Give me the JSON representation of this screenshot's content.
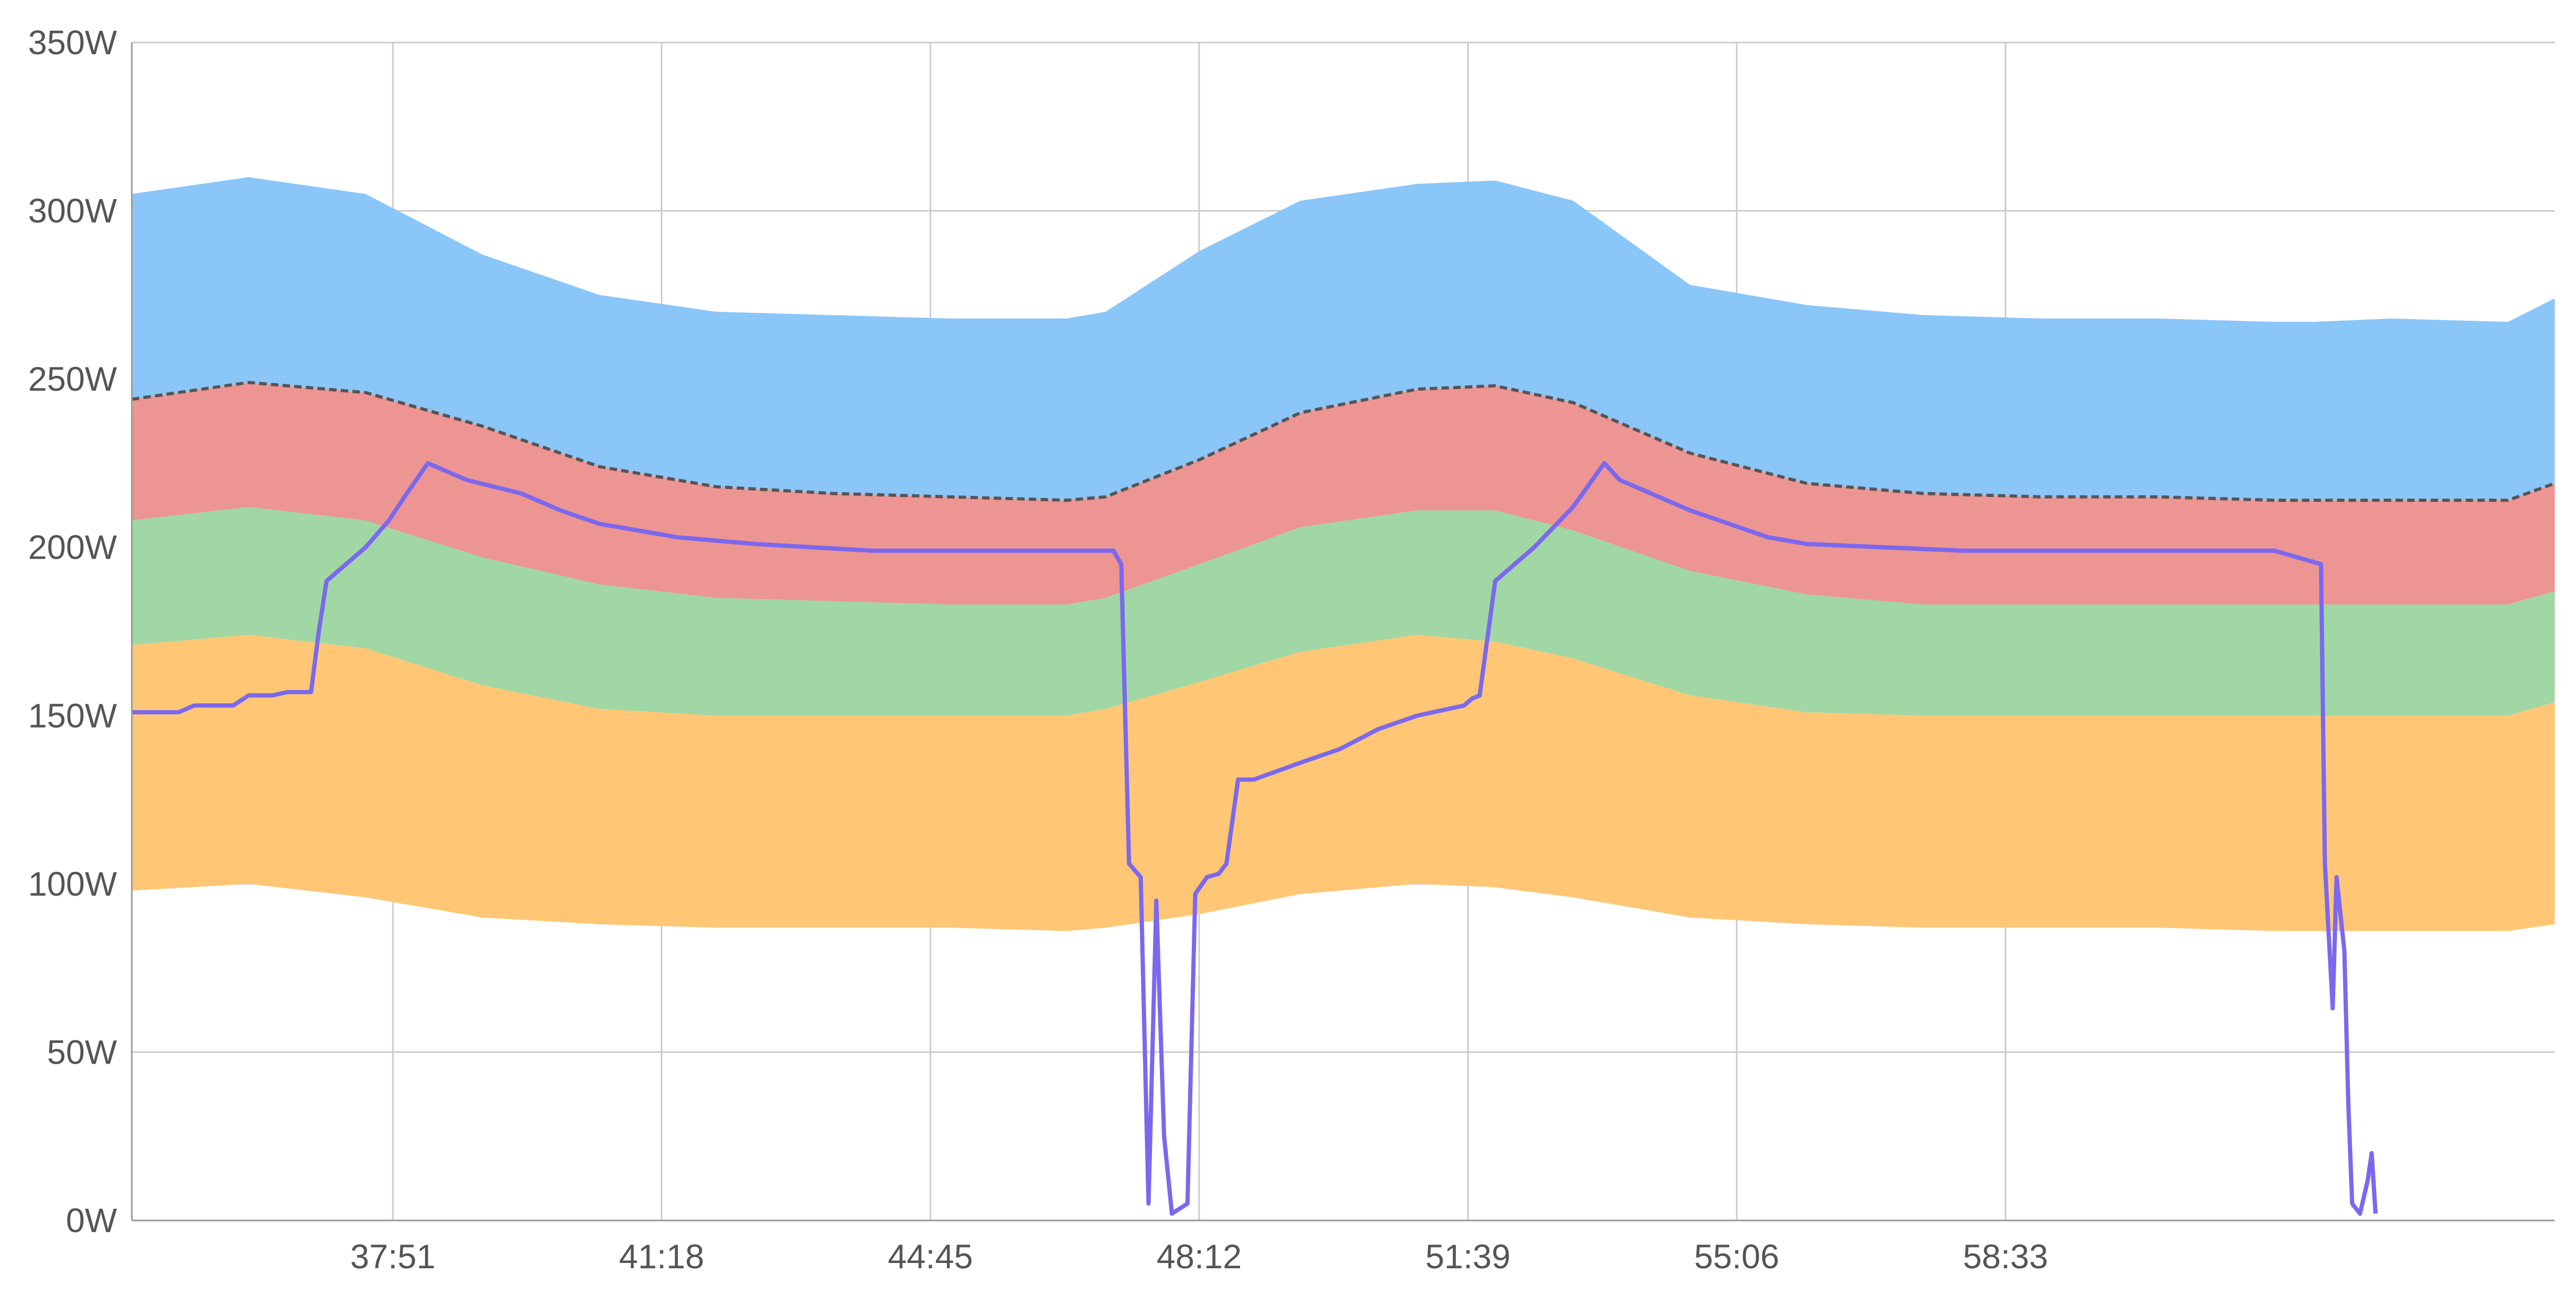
{
  "chart_data": {
    "type": "area",
    "title": "",
    "xlabel": "",
    "ylabel": "",
    "grid": true,
    "legend": "none",
    "x_unit": "minutes",
    "xlim": [
      34.5,
      65.6
    ],
    "ylim": [
      0,
      350
    ],
    "y_ticks": [
      0,
      50,
      100,
      150,
      200,
      250,
      300,
      350
    ],
    "y_tick_labels": [
      "0W",
      "50W",
      "100W",
      "150W",
      "200W",
      "250W",
      "300W",
      "350W"
    ],
    "x_ticks": [
      37.85,
      41.3,
      44.75,
      48.2,
      51.65,
      55.1,
      58.55
    ],
    "x_tick_labels": [
      "37:51",
      "41:18",
      "44:45",
      "48:12",
      "51:39",
      "55:06",
      "58:33"
    ],
    "x": [
      34.5,
      36.0,
      37.5,
      39.0,
      40.5,
      42.0,
      43.5,
      45.0,
      46.5,
      47.0,
      48.2,
      49.5,
      51.0,
      52.0,
      53.0,
      54.5,
      56.0,
      57.5,
      59.0,
      60.5,
      62.0,
      62.5,
      63.5,
      65.0,
      65.6
    ],
    "series": [
      {
        "color": "#ffc675",
        "lower": [
          98,
          100,
          96,
          90,
          88,
          87,
          87,
          87,
          86,
          87,
          91,
          97,
          100,
          99,
          96,
          90,
          88,
          87,
          87,
          87,
          86,
          86,
          86,
          86,
          88
        ],
        "upper": [
          171,
          174,
          170,
          159,
          152,
          150,
          150,
          150,
          150,
          152,
          160,
          169,
          174,
          172,
          167,
          156,
          151,
          150,
          150,
          150,
          150,
          150,
          150,
          150,
          154
        ]
      },
      {
        "color": "#a0d7a4",
        "lower": [
          171,
          174,
          170,
          159,
          152,
          150,
          150,
          150,
          150,
          152,
          160,
          169,
          174,
          172,
          167,
          156,
          151,
          150,
          150,
          150,
          150,
          150,
          150,
          150,
          154
        ],
        "upper": [
          208,
          212,
          208,
          197,
          189,
          185,
          184,
          183,
          183,
          185,
          195,
          206,
          211,
          211,
          205,
          193,
          186,
          183,
          183,
          183,
          183,
          183,
          183,
          183,
          187
        ]
      },
      {
        "color": "#ec9592",
        "lower": [
          208,
          212,
          208,
          197,
          189,
          185,
          184,
          183,
          183,
          185,
          195,
          206,
          211,
          211,
          205,
          193,
          186,
          183,
          183,
          183,
          183,
          183,
          183,
          183,
          187
        ],
        "upper": [
          244,
          249,
          246,
          236,
          224,
          218,
          216,
          215,
          214,
          215,
          226,
          240,
          247,
          248,
          243,
          228,
          219,
          216,
          215,
          215,
          214,
          214,
          214,
          214,
          219
        ]
      },
      {
        "color": "#8ac6f8",
        "lower": [
          244,
          249,
          246,
          236,
          224,
          218,
          216,
          215,
          214,
          215,
          226,
          240,
          247,
          248,
          243,
          228,
          219,
          216,
          215,
          215,
          214,
          214,
          214,
          214,
          219
        ],
        "upper": [
          305,
          310,
          305,
          287,
          275,
          270,
          269,
          268,
          268,
          270,
          288,
          303,
          308,
          309,
          303,
          278,
          272,
          269,
          268,
          268,
          267,
          267,
          268,
          267,
          274
        ]
      }
    ],
    "dashed_line": {
      "color": "#555555",
      "values": [
        244,
        249,
        246,
        236,
        224,
        218,
        216,
        215,
        214,
        215,
        226,
        240,
        247,
        248,
        243,
        228,
        219,
        216,
        215,
        215,
        214,
        214,
        214,
        214,
        219
      ]
    },
    "line_series": {
      "color": "#7b68ee",
      "x": [
        34.5,
        35.1,
        35.3,
        35.8,
        36.0,
        36.3,
        36.5,
        36.8,
        36.9,
        37.0,
        37.5,
        37.8,
        38.0,
        38.3,
        38.8,
        39.5,
        40.0,
        40.5,
        41.5,
        42.5,
        44.0,
        46.0,
        47.1,
        47.2,
        47.3,
        47.45,
        47.55,
        47.65,
        47.75,
        47.85,
        48.05,
        48.15,
        48.3,
        48.45,
        48.55,
        48.7,
        48.9,
        49.5,
        50.0,
        50.5,
        51.0,
        51.6,
        51.7,
        51.8,
        52.0,
        52.5,
        53.0,
        53.4,
        53.6,
        54.0,
        54.5,
        55.0,
        55.5,
        56.0,
        57.0,
        58.0,
        59.0,
        60.5,
        62.0,
        62.6,
        62.65,
        62.75,
        62.8,
        62.9,
        62.95,
        63.0,
        63.1,
        63.2,
        63.25,
        63.3
      ],
      "y": [
        151,
        151,
        153,
        153,
        156,
        156,
        157,
        157,
        175,
        190,
        200,
        208,
        215,
        225,
        220,
        216,
        211,
        207,
        203,
        201,
        199,
        199,
        199,
        195,
        106,
        102,
        5,
        95,
        25,
        2,
        5,
        97,
        102,
        103,
        106,
        131,
        131,
        136,
        140,
        146,
        150,
        153,
        155,
        156,
        190,
        200,
        212,
        225,
        220,
        216,
        211,
        207,
        203,
        201,
        200,
        199,
        199,
        199,
        199,
        195,
        106,
        63,
        102,
        80,
        35,
        5,
        2,
        12,
        20,
        2
      ]
    }
  }
}
